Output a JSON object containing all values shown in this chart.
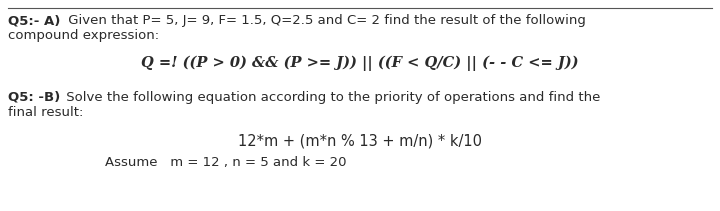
{
  "background_color": "#ffffff",
  "line1_bold": "Q5:- A)",
  "line1_rest": " Given that P= 5, J= 9, F= 1.5, Q=2.5 and C= 2 find the result of the following",
  "line2_text": "compound expression:",
  "expression_text": "Q =! ((P > 0) && (P >= J)) || ((F < Q/C) || (- - C <= J))",
  "line4_bold": "Q5: -B)",
  "line4_rest": " Solve the following equation according to the priority of operations and find the",
  "line5_text": "final result:",
  "equation_text": "12*m + (m*n % 13 + m/n) * k/10",
  "assume_text": "Assume   m = 12 , n = 5 and k = 20",
  "font_size_body": 9.5,
  "font_size_expr": 10.5,
  "text_color": "#2a2a2a",
  "line_color": "#555555"
}
